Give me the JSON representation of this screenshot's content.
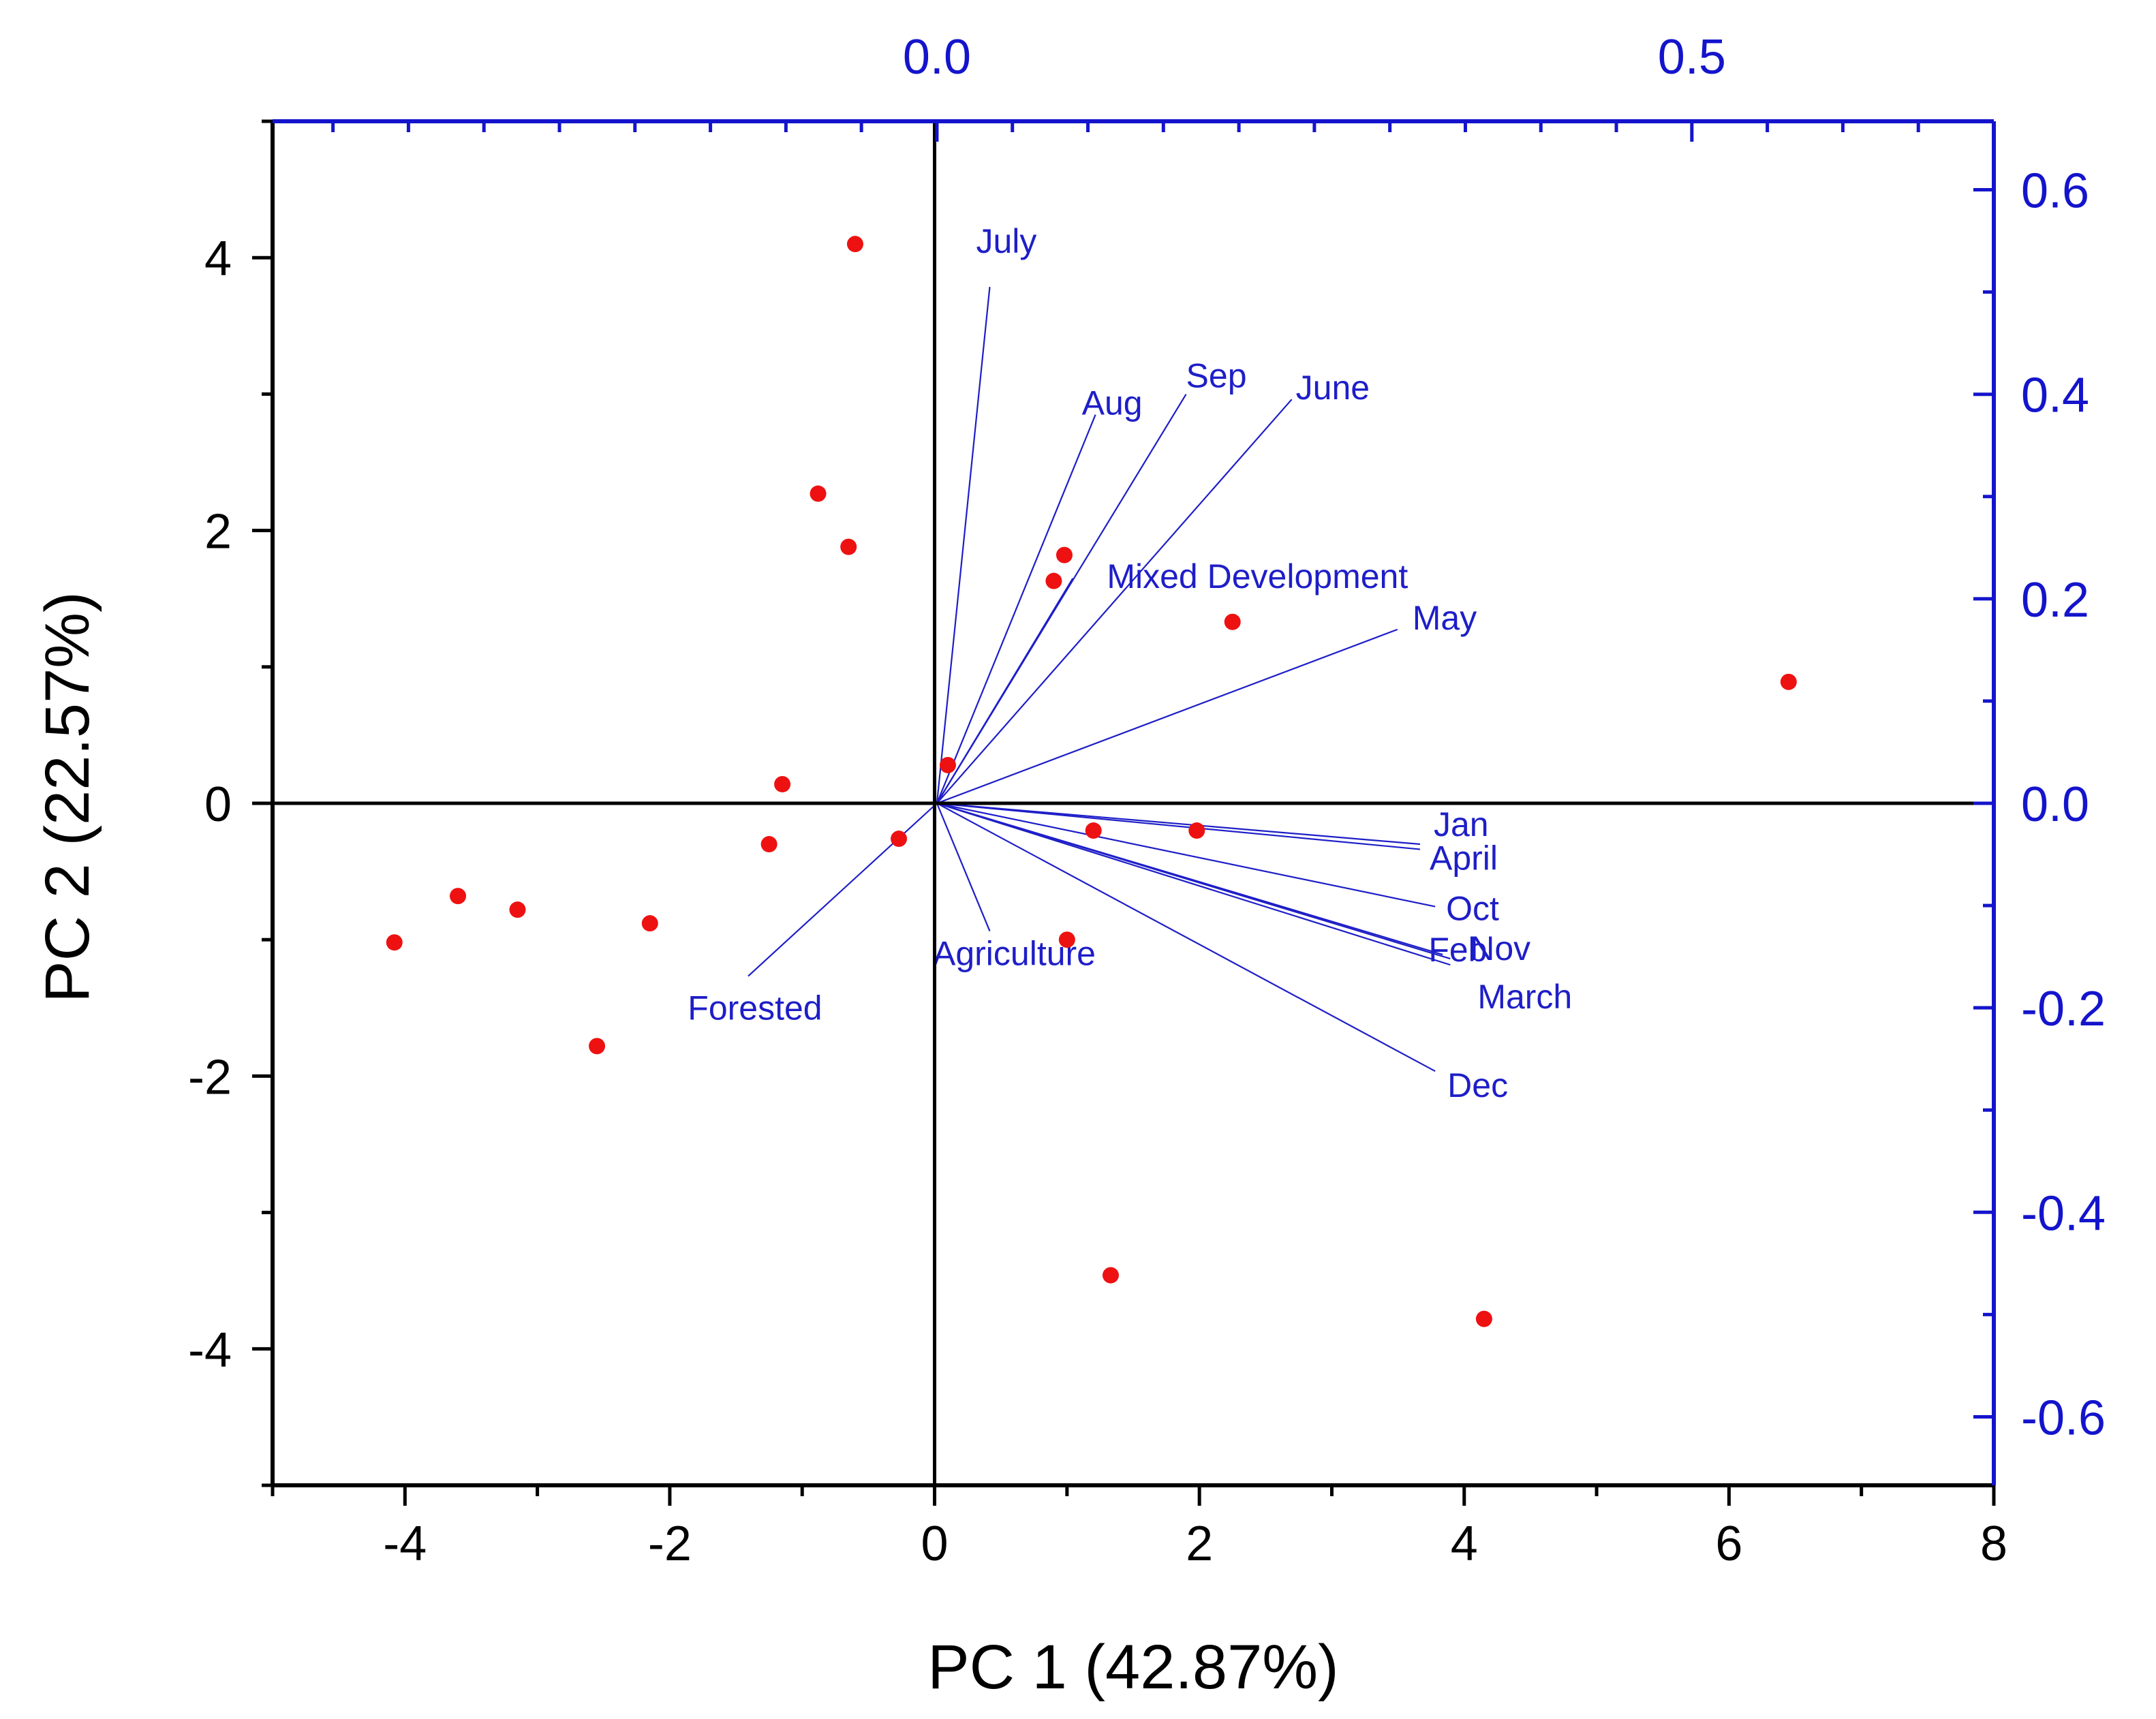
{
  "chart_data": {
    "type": "scatter",
    "subtype": "pca-biplot",
    "xlabel": "PC 1 (42.87%)",
    "ylabel": "PC 2 (22.57%)",
    "xlim": [
      -5,
      8
    ],
    "ylim": [
      -5,
      5
    ],
    "x_ticks": [
      -4,
      -2,
      0,
      2,
      4,
      6,
      8
    ],
    "x_tick_labels": [
      "-4",
      "-2",
      "0",
      "2",
      "4",
      "6",
      "8"
    ],
    "y_ticks": [
      -4,
      -2,
      0,
      2,
      4
    ],
    "y_tick_labels": [
      "-4",
      "-2",
      "0",
      "2",
      "4"
    ],
    "loading_axes": {
      "x_top": {
        "lim": [
          -0.44,
          0.7
        ],
        "ticks": [
          0.0,
          0.5
        ],
        "tick_labels": [
          "0.0",
          "0.5"
        ]
      },
      "y_right": {
        "lim": [
          -0.667,
          0.667
        ],
        "ticks": [
          0.6,
          0.4,
          0.2,
          0.0,
          -0.2,
          -0.4,
          -0.6
        ],
        "tick_labels": [
          "0.6",
          "0.4",
          "0.2",
          "0.0",
          "-0.2",
          "-0.4",
          "-0.6"
        ]
      }
    },
    "scores": {
      "color": "#ee1111",
      "points": [
        {
          "x": -0.6,
          "y": 4.1
        },
        {
          "x": -0.88,
          "y": 2.27
        },
        {
          "x": -0.65,
          "y": 1.88
        },
        {
          "x": 0.98,
          "y": 1.82
        },
        {
          "x": 0.9,
          "y": 1.63
        },
        {
          "x": 2.25,
          "y": 1.33
        },
        {
          "x": 6.45,
          "y": 0.89
        },
        {
          "x": 0.1,
          "y": 0.28
        },
        {
          "x": -1.15,
          "y": 0.14
        },
        {
          "x": -1.25,
          "y": -0.3
        },
        {
          "x": -0.27,
          "y": -0.26
        },
        {
          "x": 1.2,
          "y": -0.2
        },
        {
          "x": 1.98,
          "y": -0.2
        },
        {
          "x": -3.6,
          "y": -0.68
        },
        {
          "x": -3.15,
          "y": -0.78
        },
        {
          "x": -2.15,
          "y": -0.88
        },
        {
          "x": -4.08,
          "y": -1.02
        },
        {
          "x": 1.0,
          "y": -1.0
        },
        {
          "x": -2.55,
          "y": -1.78
        },
        {
          "x": 1.33,
          "y": -3.46
        },
        {
          "x": 4.15,
          "y": -3.78
        }
      ]
    },
    "loadings": {
      "color": "#1e1ec8",
      "vectors": [
        {
          "name": "July",
          "x": 0.035,
          "y": 0.505
        },
        {
          "name": "Aug",
          "x": 0.105,
          "y": 0.38
        },
        {
          "name": "Sep",
          "x": 0.165,
          "y": 0.4
        },
        {
          "name": "June",
          "x": 0.235,
          "y": 0.395
        },
        {
          "name": "Mixed Development",
          "x": 0.09,
          "y": 0.22
        },
        {
          "name": "May",
          "x": 0.305,
          "y": 0.17
        },
        {
          "name": "Jan",
          "x": 0.32,
          "y": -0.04
        },
        {
          "name": "April",
          "x": 0.32,
          "y": -0.045
        },
        {
          "name": "Oct",
          "x": 0.33,
          "y": -0.101
        },
        {
          "name": "Nov",
          "x": 0.335,
          "y": -0.148
        },
        {
          "name": "Feb",
          "x": 0.34,
          "y": -0.152
        },
        {
          "name": "March",
          "x": 0.34,
          "y": -0.158
        },
        {
          "name": "Dec",
          "x": 0.33,
          "y": -0.262
        },
        {
          "name": "Agriculture",
          "x": 0.035,
          "y": -0.125
        },
        {
          "name": "Forested",
          "x": -0.125,
          "y": -0.169
        }
      ]
    }
  }
}
